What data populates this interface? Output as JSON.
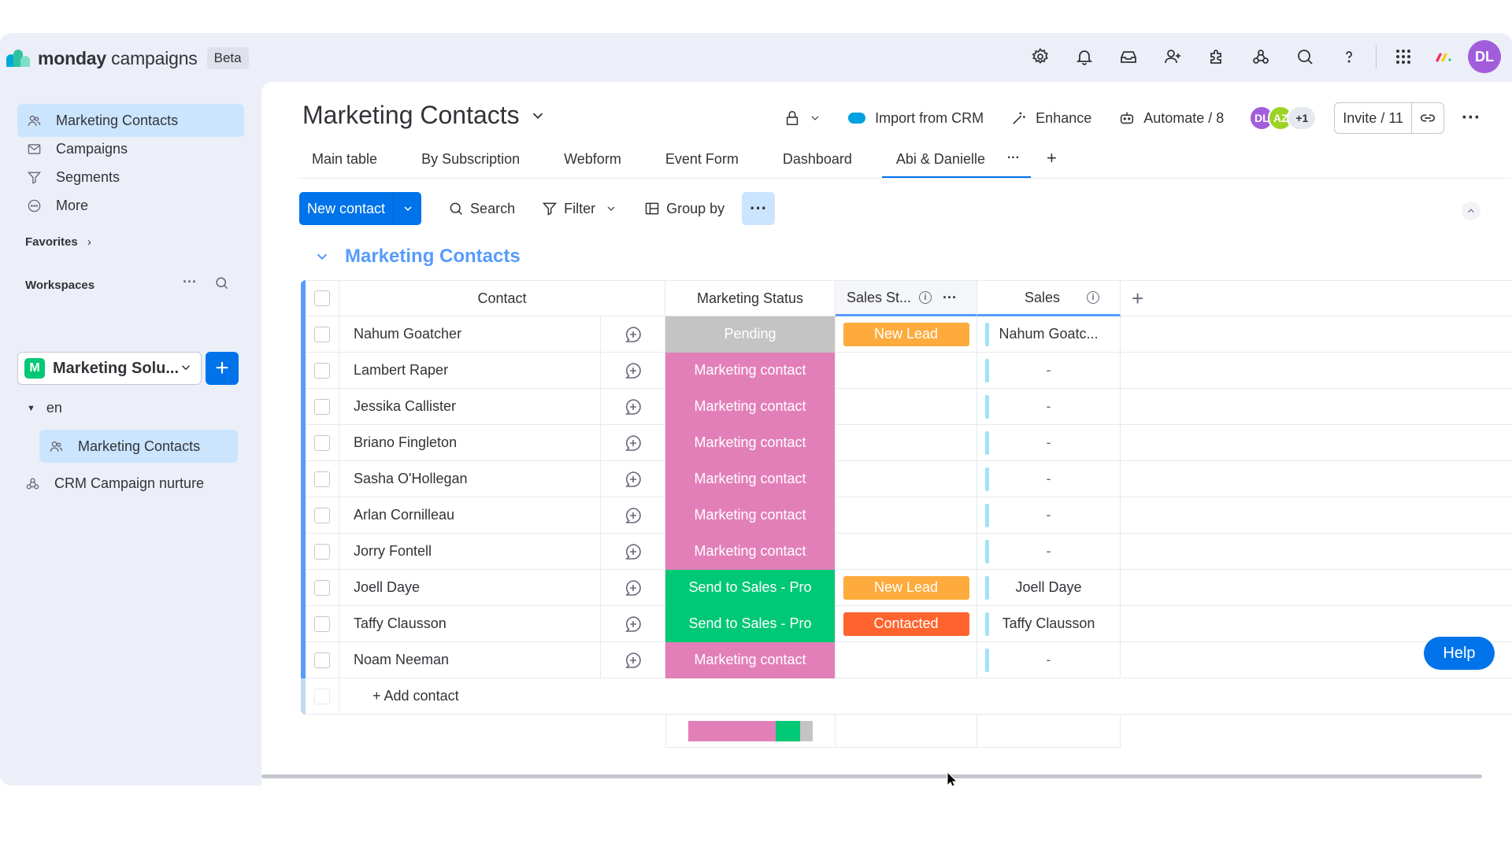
{
  "brand": {
    "name_bold": "monday",
    "name_rest": " campaigns",
    "badge": "Beta"
  },
  "user": {
    "initials": "DL",
    "color": "#a25ddc"
  },
  "top_icons": [
    "gear-icon",
    "bell-icon",
    "inbox-icon",
    "invite-user-icon",
    "apps-icon",
    "integrations-icon",
    "search-icon",
    "help-icon",
    "grid-icon",
    "monday-logo-icon"
  ],
  "sidebar": {
    "items": [
      {
        "label": "Marketing Contacts",
        "icon": "contacts-icon",
        "active": true
      },
      {
        "label": "Campaigns",
        "icon": "mail-icon"
      },
      {
        "label": "Segments",
        "icon": "filter-icon"
      },
      {
        "label": "More",
        "icon": "more-icon"
      }
    ],
    "favorites_label": "Favorites",
    "workspaces_label": "Workspaces",
    "workspace": {
      "badge": "M",
      "name": "Marketing Solu..."
    },
    "folder": "en",
    "folder_item": "Marketing Contacts",
    "extra_item": "CRM Campaign nurture"
  },
  "board": {
    "title": "Marketing Contacts",
    "import_label": "Import from CRM",
    "enhance_label": "Enhance",
    "automate_label": "Automate / 8",
    "avatars": [
      {
        "initials": "DL",
        "color": "#a25ddc"
      },
      {
        "initials": "AZ",
        "color": "#9cd326"
      }
    ],
    "avatars_more": "+1",
    "invite_label": "Invite / 11"
  },
  "tabs": [
    "Main table",
    "By Subscription",
    "Webform",
    "Event Form",
    "Dashboard",
    "Abi & Danielle"
  ],
  "toolbar": {
    "new_label": "New contact",
    "search_label": "Search",
    "filter_label": "Filter",
    "groupby_label": "Group by"
  },
  "group": {
    "title": "Marketing Contacts",
    "color": "#579bfc"
  },
  "columns": {
    "contact": "Contact",
    "marketing_status": "Marketing Status",
    "sales_status": "Sales St...",
    "sales": "Sales"
  },
  "status_colors": {
    "Pending": "#c4c4c4",
    "Marketing contact": "#e2445c",
    "Send to Sales - Pro": "#00c875",
    "New Lead": "#fdab3d",
    "Contacted": "#ff642e"
  },
  "rows": [
    {
      "name": "Nahum Goatcher",
      "marketing": "Pending",
      "sales_status": "New Lead",
      "sales": "Nahum Goatc..."
    },
    {
      "name": "Lambert Raper",
      "marketing": "Marketing contact",
      "sales_status": "",
      "sales": "-"
    },
    {
      "name": "Jessika Callister",
      "marketing": "Marketing contact",
      "sales_status": "",
      "sales": "-"
    },
    {
      "name": "Briano Fingleton",
      "marketing": "Marketing contact",
      "sales_status": "",
      "sales": "-"
    },
    {
      "name": "Sasha O'Hollegan",
      "marketing": "Marketing contact",
      "sales_status": "",
      "sales": "-"
    },
    {
      "name": "Arlan Cornilleau",
      "marketing": "Marketing contact",
      "sales_status": "",
      "sales": "-"
    },
    {
      "name": "Jorry Fontell",
      "marketing": "Marketing contact",
      "sales_status": "",
      "sales": "-"
    },
    {
      "name": "Joell Daye",
      "marketing": "Send to Sales - Pro",
      "sales_status": "New Lead",
      "sales": "Joell Daye"
    },
    {
      "name": "Taffy Clausson",
      "marketing": "Send to Sales - Pro",
      "sales_status": "Contacted",
      "sales": "Taffy Clausson"
    },
    {
      "name": "Noam Neeman",
      "marketing": "Marketing contact",
      "sales_status": "",
      "sales": "-"
    }
  ],
  "add_contact_label": "+ Add contact",
  "summary": [
    {
      "status": "Marketing contact",
      "fraction": 0.7,
      "color": "#e27fb9"
    },
    {
      "status": "Send to Sales - Pro",
      "fraction": 0.2,
      "color": "#00c875"
    },
    {
      "status": "Pending",
      "fraction": 0.1,
      "color": "#c4c4c4"
    }
  ],
  "help_label": "Help"
}
